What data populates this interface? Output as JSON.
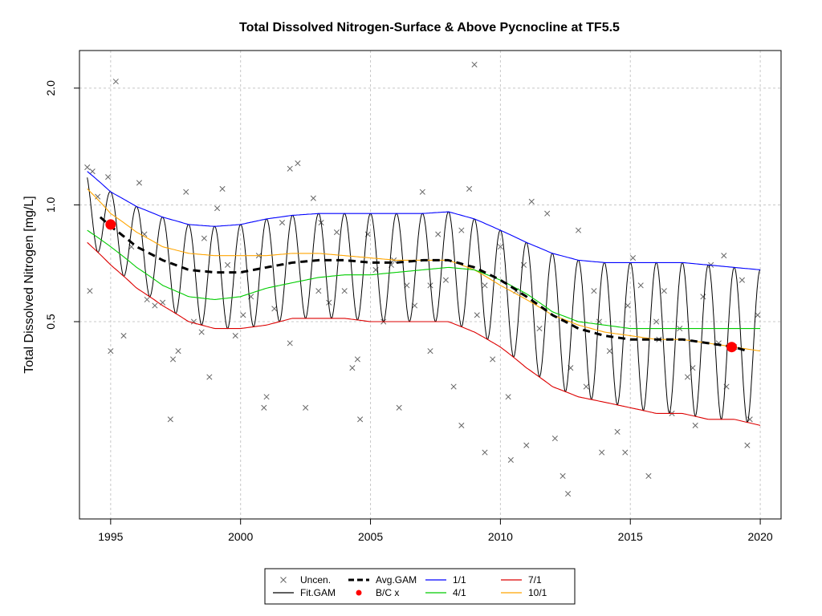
{
  "chart_data": {
    "type": "scatter",
    "title": "Total Dissolved Nitrogen-Surface & Above Pycnocline at TF5.5",
    "xlabel": "",
    "ylabel": "Total Dissolved Nitrogen [mg/L]",
    "xlim": [
      1993.8,
      2020.8
    ],
    "ylim": [
      0.155,
      2.5
    ],
    "y_scale": "log",
    "grid": true,
    "x_ticks": [
      1995,
      2000,
      2005,
      2010,
      2015,
      2020
    ],
    "x_tick_labels": [
      "1995",
      "2000",
      "2005",
      "2010",
      "2015",
      "2020"
    ],
    "y_ticks": [
      0.5,
      1.0,
      2.0
    ],
    "y_tick_labels": [
      "0.5",
      "1.0",
      "2.0"
    ],
    "reference_lines": [
      0.5,
      1.0,
      2.0
    ],
    "legend": {
      "placement": "bottom",
      "entries": [
        {
          "label": "Uncen.",
          "kind": "cross",
          "color": "#666666"
        },
        {
          "label": "Fit.GAM",
          "kind": "line",
          "color": "#000000"
        },
        {
          "label": "Avg.GAM",
          "kind": "dashed",
          "color": "#000000"
        },
        {
          "label": "B/C x",
          "kind": "dot",
          "color": "#ff0000"
        },
        {
          "label": "1/1",
          "kind": "line",
          "color": "#0000ff"
        },
        {
          "label": "4/1",
          "kind": "line",
          "color": "#00cc00"
        },
        {
          "label": "7/1",
          "kind": "line",
          "color": "#dd0000"
        },
        {
          "label": "10/1",
          "kind": "line",
          "color": "#ffa500"
        }
      ]
    },
    "seasonal_curves": {
      "x": [
        1994.1,
        1995,
        1996,
        1997,
        1998,
        1999,
        2000,
        2001,
        2002,
        2003,
        2004,
        2005,
        2006,
        2007,
        2008,
        2009,
        2010,
        2011,
        2012,
        2013,
        2014,
        2015,
        2016,
        2017,
        2018,
        2019,
        2020
      ],
      "series": [
        {
          "name": "1/1",
          "color": "#0000ff",
          "values": [
            1.22,
            1.08,
            0.99,
            0.93,
            0.89,
            0.88,
            0.89,
            0.92,
            0.94,
            0.95,
            0.95,
            0.95,
            0.95,
            0.95,
            0.96,
            0.92,
            0.86,
            0.8,
            0.75,
            0.72,
            0.71,
            0.71,
            0.71,
            0.71,
            0.7,
            0.69,
            0.68
          ]
        },
        {
          "name": "10/1",
          "color": "#ffa500",
          "values": [
            1.1,
            0.95,
            0.85,
            0.78,
            0.75,
            0.74,
            0.74,
            0.74,
            0.75,
            0.75,
            0.74,
            0.73,
            0.72,
            0.72,
            0.72,
            0.68,
            0.62,
            0.57,
            0.52,
            0.49,
            0.47,
            0.46,
            0.45,
            0.45,
            0.44,
            0.43,
            0.42
          ]
        },
        {
          "name": "4/1",
          "color": "#00cc00",
          "values": [
            0.86,
            0.78,
            0.69,
            0.62,
            0.58,
            0.57,
            0.58,
            0.61,
            0.63,
            0.65,
            0.66,
            0.66,
            0.67,
            0.68,
            0.69,
            0.68,
            0.64,
            0.59,
            0.53,
            0.5,
            0.49,
            0.48,
            0.48,
            0.48,
            0.48,
            0.48,
            0.48
          ]
        },
        {
          "name": "7/1",
          "color": "#dd0000",
          "values": [
            0.8,
            0.7,
            0.61,
            0.55,
            0.5,
            0.48,
            0.48,
            0.49,
            0.51,
            0.51,
            0.51,
            0.5,
            0.5,
            0.5,
            0.5,
            0.47,
            0.43,
            0.38,
            0.34,
            0.32,
            0.31,
            0.3,
            0.29,
            0.29,
            0.28,
            0.28,
            0.27
          ]
        }
      ]
    },
    "avg_gam": {
      "name": "Avg.GAM",
      "x": [
        1994.6,
        1995,
        1996,
        1997,
        1998,
        1999,
        2000,
        2001,
        2002,
        2003,
        2004,
        2005,
        2006,
        2007,
        2008,
        2009,
        2010,
        2011,
        2012,
        2013,
        2014,
        2015,
        2016,
        2017,
        2018,
        2019,
        2019.5
      ],
      "values": [
        0.93,
        0.88,
        0.78,
        0.72,
        0.68,
        0.67,
        0.67,
        0.69,
        0.71,
        0.72,
        0.72,
        0.71,
        0.71,
        0.72,
        0.72,
        0.69,
        0.64,
        0.58,
        0.52,
        0.48,
        0.46,
        0.45,
        0.45,
        0.45,
        0.44,
        0.43,
        0.42
      ]
    },
    "bc_points": [
      {
        "x": 1995.0,
        "y": 0.89
      },
      {
        "x": 2018.9,
        "y": 0.43
      }
    ],
    "uncensored": {
      "x": [
        1994.1,
        1994.3,
        1994.5,
        1994.9,
        1995.2,
        1995.5,
        1995.8,
        1996.1,
        1996.4,
        1996.7,
        1997.0,
        1997.3,
        1997.6,
        1997.9,
        1998.2,
        1998.5,
        1998.8,
        1999.1,
        1999.5,
        1999.8,
        2000.1,
        2000.4,
        2000.7,
        2001.0,
        2001.3,
        2001.6,
        2001.9,
        2002.2,
        2002.5,
        2002.8,
        2003.1,
        2003.4,
        2003.7,
        2004.0,
        2004.3,
        2004.6,
        2004.9,
        2005.2,
        2005.5,
        2005.8,
        2006.1,
        2006.4,
        2006.7,
        2007.0,
        2007.3,
        2007.6,
        2007.9,
        2008.2,
        2008.5,
        2008.8,
        2009.1,
        2009.4,
        2009.7,
        2010.0,
        2010.3,
        2010.6,
        2010.9,
        2011.2,
        2011.5,
        2011.8,
        2012.1,
        2012.4,
        2012.7,
        2013.0,
        2013.3,
        2013.6,
        2013.9,
        2014.2,
        2014.5,
        2014.8,
        2015.1,
        2015.4,
        2015.7,
        2016.0,
        2016.3,
        2016.6,
        2016.9,
        2017.2,
        2017.5,
        2017.8,
        2018.1,
        2018.4,
        2018.7,
        2019.0,
        2019.3,
        2019.6,
        2019.9,
        1994.2,
        1995.0,
        1996.3,
        1997.4,
        1998.6,
        1999.3,
        2000.9,
        2001.9,
        2003.0,
        2004.5,
        2005.9,
        2007.3,
        2008.5,
        2009.4,
        2010.4,
        2011.0,
        2012.6,
        2013.8,
        2014.9,
        2016.1,
        2017.4,
        2018.6,
        2019.5,
        2009.0
      ],
      "values": [
        1.25,
        1.22,
        1.05,
        1.18,
        2.08,
        0.46,
        0.78,
        1.14,
        0.57,
        0.55,
        0.56,
        0.28,
        0.42,
        1.08,
        0.5,
        0.47,
        0.36,
        0.98,
        0.7,
        0.46,
        0.52,
        0.58,
        0.74,
        0.32,
        0.54,
        0.9,
        0.44,
        1.28,
        0.3,
        1.04,
        0.9,
        0.56,
        0.85,
        0.6,
        0.38,
        0.28,
        0.84,
        0.68,
        0.5,
        0.7,
        0.3,
        0.62,
        0.55,
        1.08,
        0.42,
        0.84,
        0.64,
        0.34,
        0.86,
        1.1,
        0.52,
        0.62,
        0.4,
        0.78,
        0.32,
        0.6,
        0.7,
        1.02,
        0.48,
        0.95,
        0.25,
        0.2,
        0.38,
        0.86,
        0.34,
        0.6,
        0.23,
        0.42,
        0.26,
        0.23,
        0.73,
        0.62,
        0.2,
        0.5,
        0.6,
        0.29,
        0.48,
        0.36,
        0.27,
        0.58,
        0.7,
        0.44,
        0.34,
        0.43,
        0.64,
        0.28,
        0.52,
        0.6,
        0.42,
        0.84,
        0.4,
        0.82,
        1.1,
        0.3,
        1.24,
        0.6,
        0.4,
        0.72,
        0.62,
        0.27,
        0.23,
        0.22,
        0.24,
        0.18,
        0.5,
        0.55,
        0.45,
        0.38,
        0.74,
        0.24,
        2.3
      ]
    }
  }
}
